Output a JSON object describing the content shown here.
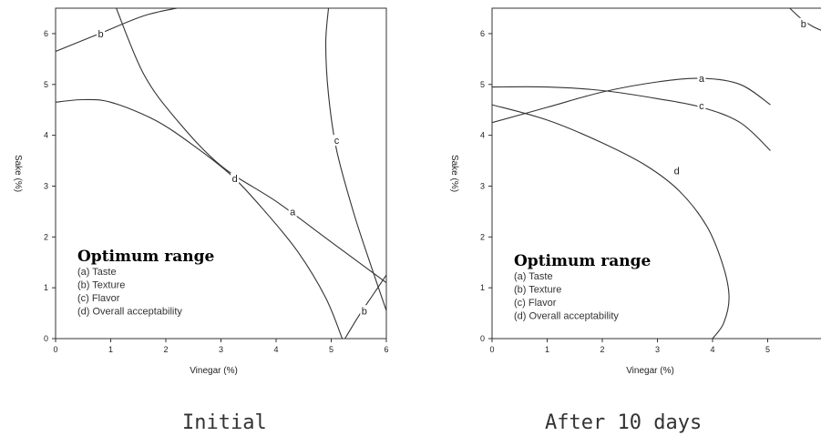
{
  "chart_data": [
    {
      "type": "line",
      "caption": "Initial",
      "xlabel": "Vinegar (%)",
      "ylabel": "Sake (%)",
      "xlim": [
        0,
        6
      ],
      "ylim": [
        0,
        6.5
      ],
      "xticks": [
        "0",
        "1",
        "2",
        "3",
        "4",
        "5",
        "6"
      ],
      "yticks": [
        "0",
        "1",
        "2",
        "3",
        "4",
        "5",
        "6"
      ],
      "grid": false,
      "legend": {
        "title": "Optimum range",
        "items": [
          "(a) Taste",
          "(b) Texture",
          "(c) Flavor",
          "(d) Overall acceptability"
        ]
      },
      "series": [
        {
          "name": "a",
          "points": [
            [
              1.1,
              6.5
            ],
            [
              1.6,
              5.2
            ],
            [
              2.2,
              4.3
            ],
            [
              3.0,
              3.4
            ],
            [
              4.0,
              2.7
            ],
            [
              5.0,
              1.9
            ],
            [
              6.0,
              1.1
            ]
          ],
          "labels": [
            {
              "text": "a",
              "at": [
                4.3,
                2.5
              ]
            }
          ]
        },
        {
          "name": "b",
          "points": [
            [
              0,
              5.65
            ],
            [
              0.8,
              6.0
            ],
            [
              1.6,
              6.35
            ],
            [
              2.2,
              6.5
            ]
          ],
          "labels": [
            {
              "text": "b",
              "at": [
                0.82,
                6.0
              ]
            }
          ]
        },
        {
          "name": "b",
          "points": [
            [
              5.25,
              0
            ],
            [
              5.5,
              0.45
            ],
            [
              5.75,
              0.85
            ],
            [
              6.0,
              1.25
            ]
          ],
          "labels": [
            {
              "text": "b",
              "at": [
                5.6,
                0.55
              ]
            }
          ]
        },
        {
          "name": "c",
          "points": [
            [
              4.95,
              6.5
            ],
            [
              4.9,
              5.8
            ],
            [
              4.95,
              4.8
            ],
            [
              5.1,
              3.7
            ],
            [
              5.4,
              2.5
            ],
            [
              5.7,
              1.5
            ],
            [
              6.0,
              0.55
            ]
          ],
          "labels": [
            {
              "text": "c",
              "at": [
                5.1,
                3.9
              ]
            }
          ]
        },
        {
          "name": "d",
          "points": [
            [
              0,
              4.65
            ],
            [
              0.5,
              4.7
            ],
            [
              1.0,
              4.65
            ],
            [
              1.8,
              4.3
            ],
            [
              2.5,
              3.8
            ],
            [
              3.2,
              3.2
            ],
            [
              3.8,
              2.5
            ],
            [
              4.4,
              1.7
            ],
            [
              4.9,
              0.8
            ],
            [
              5.2,
              0
            ]
          ],
          "labels": [
            {
              "text": "d",
              "at": [
                3.25,
                3.15
              ]
            }
          ]
        }
      ]
    },
    {
      "type": "line",
      "caption": "After 10 days",
      "xlabel": "Vinegar (%)",
      "ylabel": "Sake (%)",
      "xlim": [
        0,
        5
      ],
      "ylim": [
        0,
        6.5
      ],
      "xticks": [
        "0",
        "1",
        "2",
        "3",
        "4",
        "5"
      ],
      "yticks": [
        "0",
        "1",
        "2",
        "3",
        "4",
        "5",
        "6"
      ],
      "grid": false,
      "legend": {
        "title": "Optimum range",
        "items": [
          "(a) Taste",
          "(b) Texture",
          "(c) Flavor",
          "(d) Overall acceptability"
        ]
      },
      "series": [
        {
          "name": "a",
          "points": [
            [
              0,
              4.25
            ],
            [
              1.0,
              4.55
            ],
            [
              2.0,
              4.85
            ],
            [
              3.0,
              5.05
            ],
            [
              3.8,
              5.12
            ],
            [
              4.5,
              5.0
            ],
            [
              5.05,
              4.6
            ]
          ],
          "labels": [
            {
              "text": "a",
              "at": [
                3.8,
                5.12
              ]
            }
          ]
        },
        {
          "name": "b",
          "points": [
            [
              5.4,
              6.5
            ],
            [
              5.6,
              6.3
            ],
            [
              5.8,
              6.15
            ],
            [
              6.0,
              6.05
            ]
          ],
          "labels": [
            {
              "text": "b",
              "at": [
                5.65,
                6.2
              ]
            }
          ]
        },
        {
          "name": "c",
          "points": [
            [
              0,
              4.95
            ],
            [
              1.0,
              4.95
            ],
            [
              2.0,
              4.88
            ],
            [
              3.0,
              4.72
            ],
            [
              3.8,
              4.55
            ],
            [
              4.5,
              4.25
            ],
            [
              5.05,
              3.7
            ]
          ],
          "labels": [
            {
              "text": "c",
              "at": [
                3.8,
                4.58
              ]
            }
          ]
        },
        {
          "name": "d",
          "points": [
            [
              0,
              4.6
            ],
            [
              1.0,
              4.3
            ],
            [
              2.0,
              3.85
            ],
            [
              2.8,
              3.4
            ],
            [
              3.4,
              2.9
            ],
            [
              3.9,
              2.2
            ],
            [
              4.2,
              1.4
            ],
            [
              4.3,
              0.8
            ],
            [
              4.2,
              0.3
            ],
            [
              4.0,
              0
            ]
          ],
          "labels": [
            {
              "text": "d",
              "at": [
                3.35,
                3.3
              ]
            }
          ]
        }
      ]
    }
  ]
}
